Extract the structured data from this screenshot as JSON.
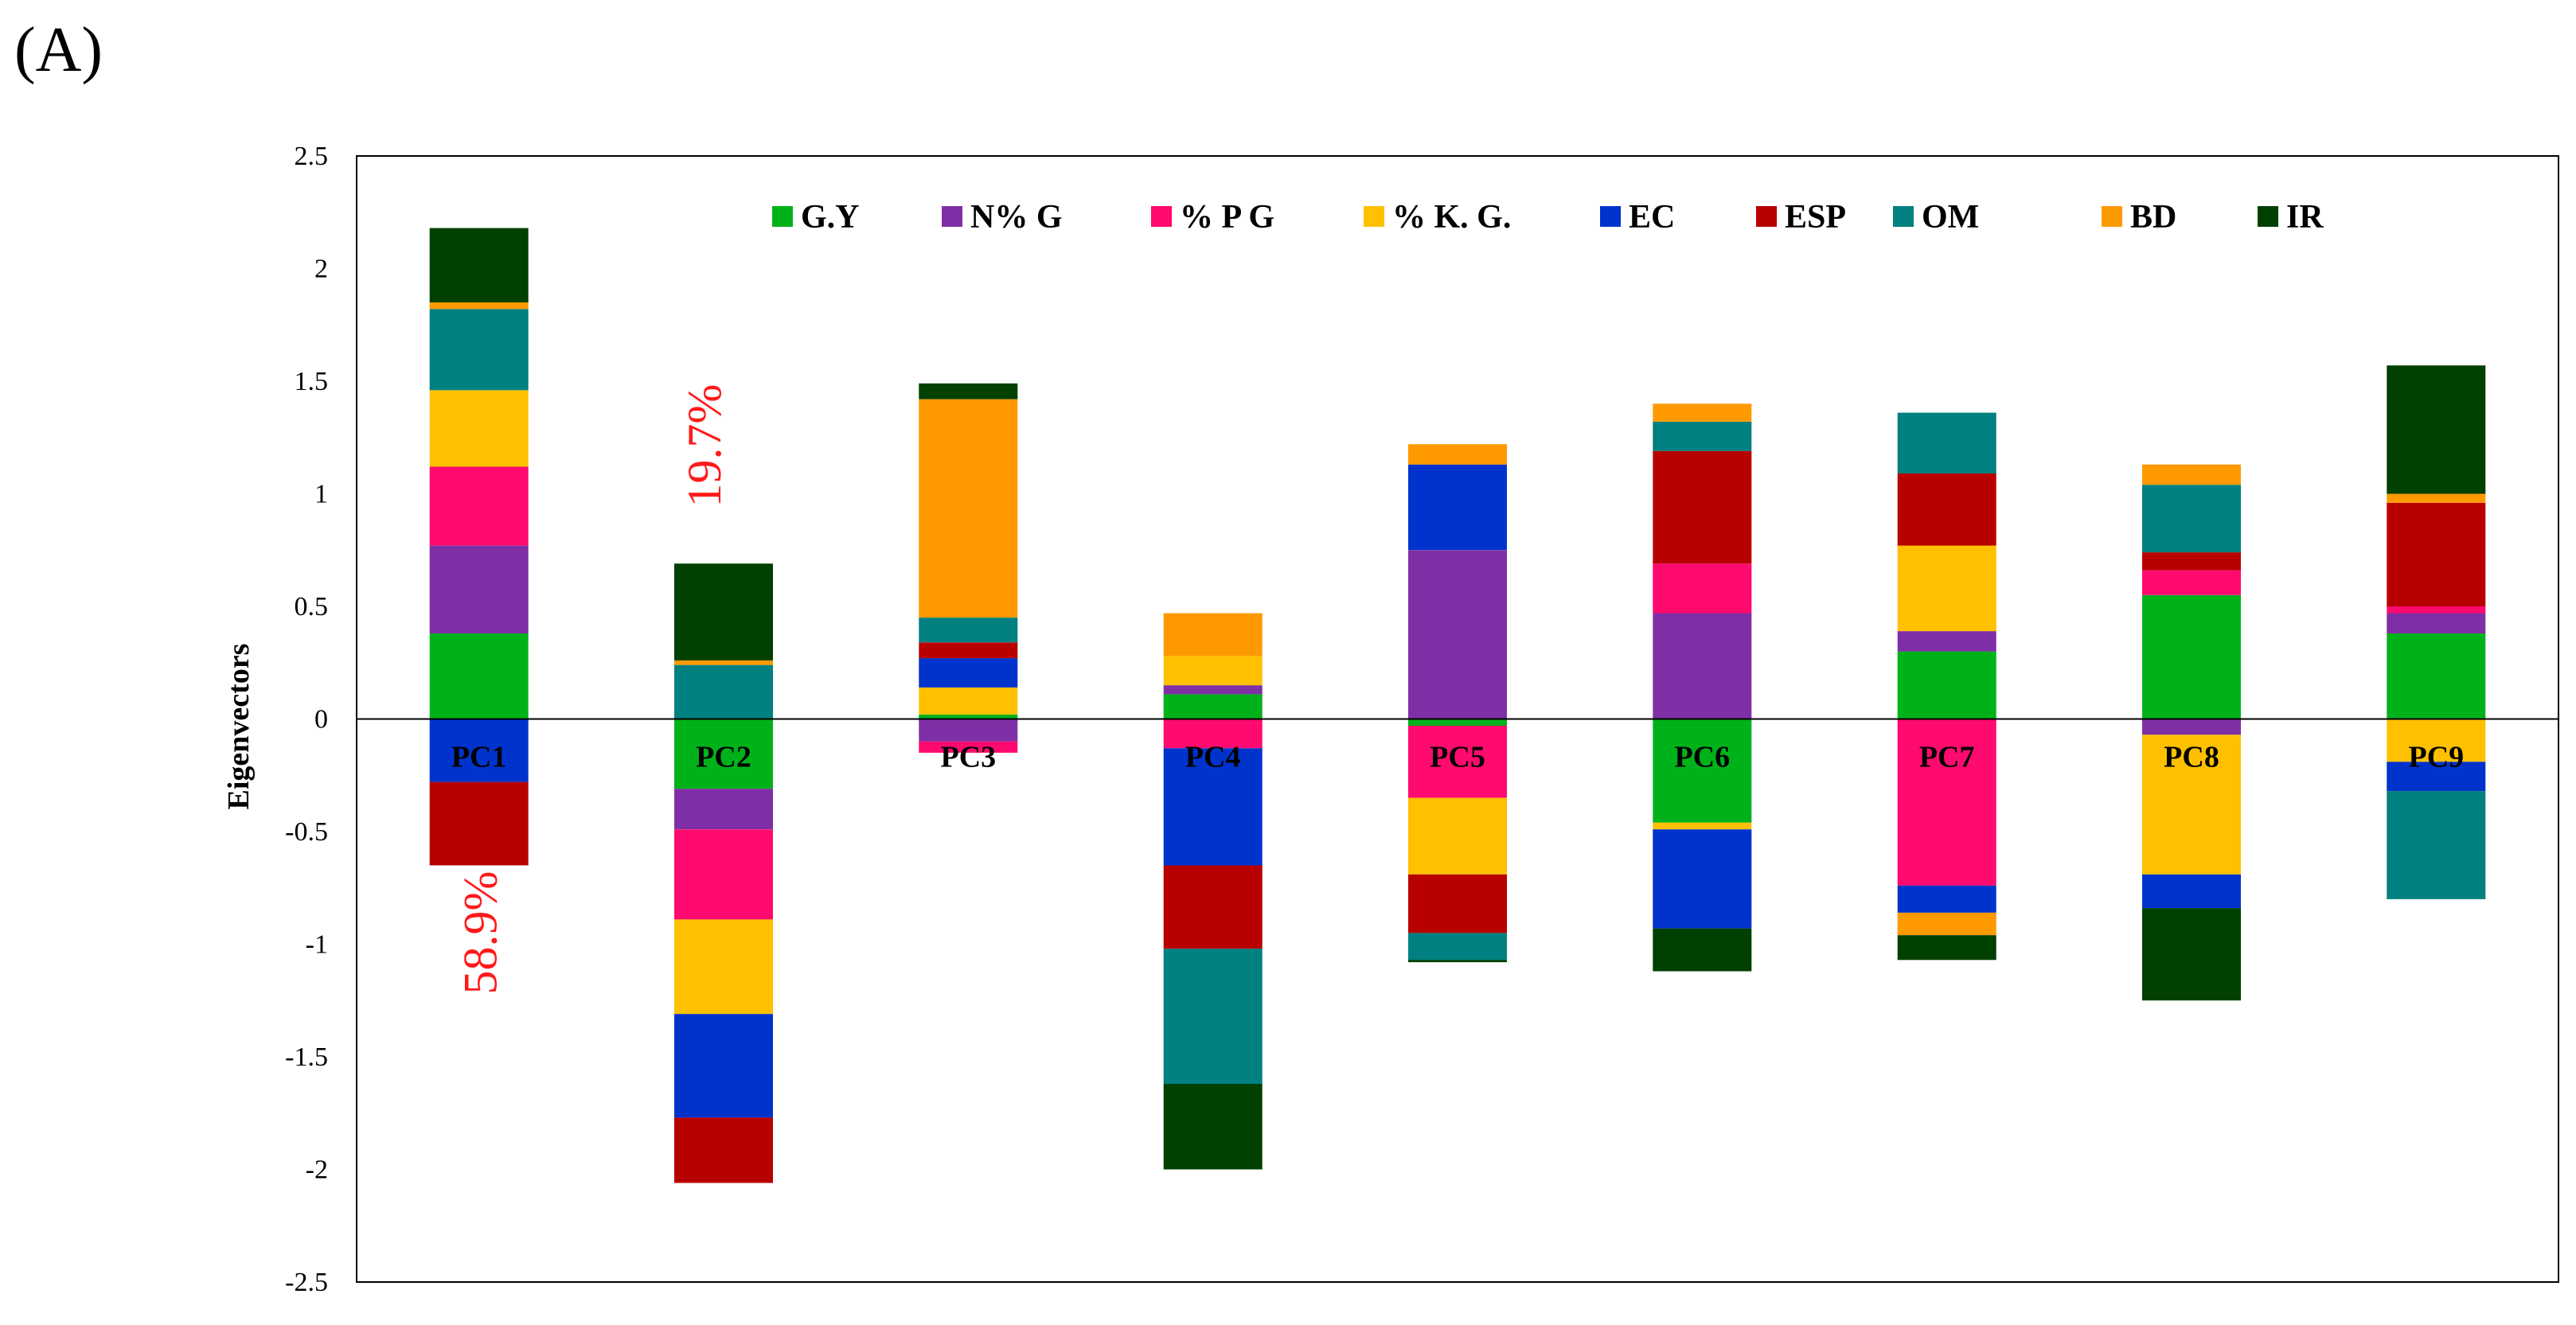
{
  "panel_label": "(A)",
  "chart_data": {
    "type": "bar",
    "stacked": true,
    "ylabel": "Eigenvectors",
    "xlabel": "",
    "ylim": [
      -2.5,
      2.5
    ],
    "yticks": [
      2.5,
      2,
      1.5,
      1,
      0.5,
      0,
      -0.5,
      -1,
      -1.5,
      -2,
      -2.5
    ],
    "ytick_labels": [
      "2.5",
      "2",
      "1.5",
      "1",
      "0.5",
      "0",
      "-0.5",
      "-1",
      "-1.5",
      "-2",
      "-2.5"
    ],
    "grid": false,
    "legend_position": "top",
    "categories": [
      "PC1",
      "PC2",
      "PC3",
      "PC4",
      "PC5",
      "PC6",
      "PC7",
      "PC8",
      "PC9"
    ],
    "series": [
      {
        "name": "G.Y",
        "color": "#00b21a",
        "values": [
          0.38,
          -0.31,
          0.02,
          0.11,
          -0.03,
          -0.46,
          0.3,
          0.55,
          0.38
        ]
      },
      {
        "name": "N% G",
        "color": "#7f2fa5",
        "values": [
          0.39,
          -0.18,
          -0.1,
          0.04,
          0.75,
          0.47,
          0.09,
          -0.07,
          0.09
        ]
      },
      {
        "name": "% P G",
        "color": "#ff0a6e",
        "values": [
          0.35,
          -0.4,
          -0.05,
          -0.13,
          -0.32,
          0.22,
          -0.74,
          0.11,
          0.03
        ]
      },
      {
        "name": "% K. G.",
        "color": "#ffc000",
        "values": [
          0.34,
          -0.42,
          0.12,
          0.13,
          -0.34,
          -0.03,
          0.38,
          -0.62,
          -0.19
        ]
      },
      {
        "name": "EC",
        "color": "#0033cc",
        "values": [
          -0.28,
          -0.46,
          0.13,
          -0.52,
          0.38,
          -0.44,
          -0.12,
          -0.15,
          -0.13
        ]
      },
      {
        "name": "ESP",
        "color": "#b80000",
        "values": [
          -0.37,
          -0.29,
          0.07,
          -0.37,
          -0.26,
          0.5,
          0.32,
          0.08,
          0.46
        ]
      },
      {
        "name": "OM",
        "color": "#008080",
        "values": [
          0.36,
          0.24,
          0.11,
          -0.6,
          -0.12,
          0.13,
          0.27,
          0.3,
          -0.48
        ]
      },
      {
        "name": "BD",
        "color": "#ff9900",
        "values": [
          0.03,
          0.02,
          0.97,
          0.19,
          0.09,
          0.08,
          -0.1,
          0.09,
          0.04
        ]
      },
      {
        "name": "IR",
        "color": "#004000",
        "values": [
          0.33,
          0.43,
          0.07,
          -0.38,
          -0.01,
          -0.19,
          -0.11,
          -0.41,
          0.57
        ]
      }
    ],
    "annotations": [
      {
        "text": "58.9%",
        "category": "PC1"
      },
      {
        "text": "19.7%",
        "category": "PC2"
      }
    ]
  }
}
